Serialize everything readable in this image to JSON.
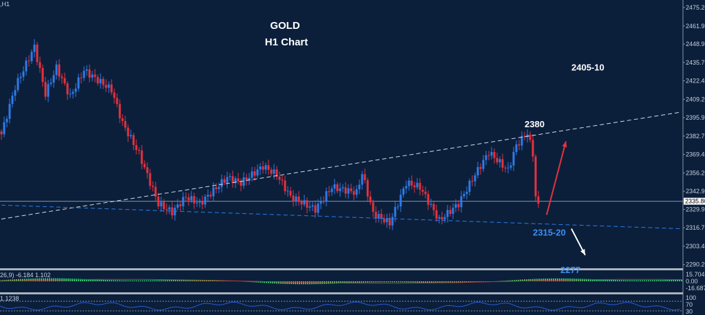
{
  "header": {
    "symbol_label": ",H1"
  },
  "title": {
    "line1": "GOLD",
    "line2": "H1 Chart"
  },
  "colors": {
    "background": "#0b1f3b",
    "bull": "#2f7be8",
    "bear": "#e8323c",
    "trend_upper": "#d8dde6",
    "trend_lower": "#2f7be8",
    "macd_hist": "#2ecc71",
    "macd_signal": "#c0392b",
    "osc_line": "#2a5bd7"
  },
  "chart_data": {
    "type": "candlestick",
    "timeframe": "H1",
    "ylim": [
      2283.5,
      2480
    ],
    "y_ticks": [
      "2475.20",
      "2461.95",
      "2448.95",
      "2435.70",
      "2422.45",
      "2409.20",
      "2395.95",
      "2382.70",
      "2369.45",
      "2356.20",
      "2342.95",
      "2329.95",
      "2316.70",
      "2303.45",
      "2290.20"
    ],
    "current_price": "2335.80",
    "close_path": [
      [
        0,
        2384
      ],
      [
        5,
        2418
      ],
      [
        12,
        2447
      ],
      [
        16,
        2413
      ],
      [
        20,
        2432
      ],
      [
        25,
        2411
      ],
      [
        30,
        2430
      ],
      [
        40,
        2416
      ],
      [
        44,
        2392
      ],
      [
        50,
        2370
      ],
      [
        57,
        2334
      ],
      [
        62,
        2328
      ],
      [
        67,
        2339
      ],
      [
        72,
        2334
      ],
      [
        82,
        2353
      ],
      [
        87,
        2349
      ],
      [
        95,
        2361
      ],
      [
        100,
        2355
      ],
      [
        105,
        2339
      ],
      [
        114,
        2330
      ],
      [
        120,
        2346
      ],
      [
        129,
        2342
      ],
      [
        131,
        2356
      ],
      [
        135,
        2327
      ],
      [
        141,
        2320
      ],
      [
        147,
        2349
      ],
      [
        152,
        2346
      ],
      [
        159,
        2322
      ],
      [
        166,
        2334
      ],
      [
        172,
        2355
      ],
      [
        177,
        2371
      ],
      [
        184,
        2358
      ],
      [
        187,
        2376
      ],
      [
        191,
        2385
      ],
      [
        193,
        2370
      ],
      [
        194,
        2339
      ],
      [
        195,
        2334
      ]
    ],
    "trendlines": [
      {
        "style": "dashed",
        "color": "upper",
        "from": [
          0,
          2323
        ],
        "to": [
          247,
          2400
        ]
      },
      {
        "style": "dashed",
        "color": "lower",
        "from": [
          0,
          2333
        ],
        "to": [
          247,
          2316
        ]
      }
    ],
    "annotations": [
      {
        "text": "2405-10",
        "price": 2430,
        "bar": 207,
        "color": "#ffffff"
      },
      {
        "text": "2380",
        "price": 2389,
        "bar": 190,
        "color": "#ffffff"
      },
      {
        "text": "2315-20",
        "price": 2311,
        "bar": 193,
        "color": "#3d8fef"
      },
      {
        "text": "2277",
        "price": 2284,
        "bar": 203,
        "color": "#3d8fef"
      }
    ],
    "arrows": [
      {
        "color": "#e8323c",
        "from": [
          198,
          2326
        ],
        "to": [
          205,
          2379
        ]
      },
      {
        "color": "#ffffff",
        "from": [
          207,
          2316
        ],
        "to": [
          212,
          2297
        ]
      }
    ],
    "macd": {
      "label": "26,9) -6.184 1.102",
      "ticks": [
        "15.704",
        "0.00",
        "-16.687"
      ]
    },
    "oscillator": {
      "label": "1.1238",
      "ticks": [
        "100",
        "70",
        "30"
      ]
    }
  }
}
